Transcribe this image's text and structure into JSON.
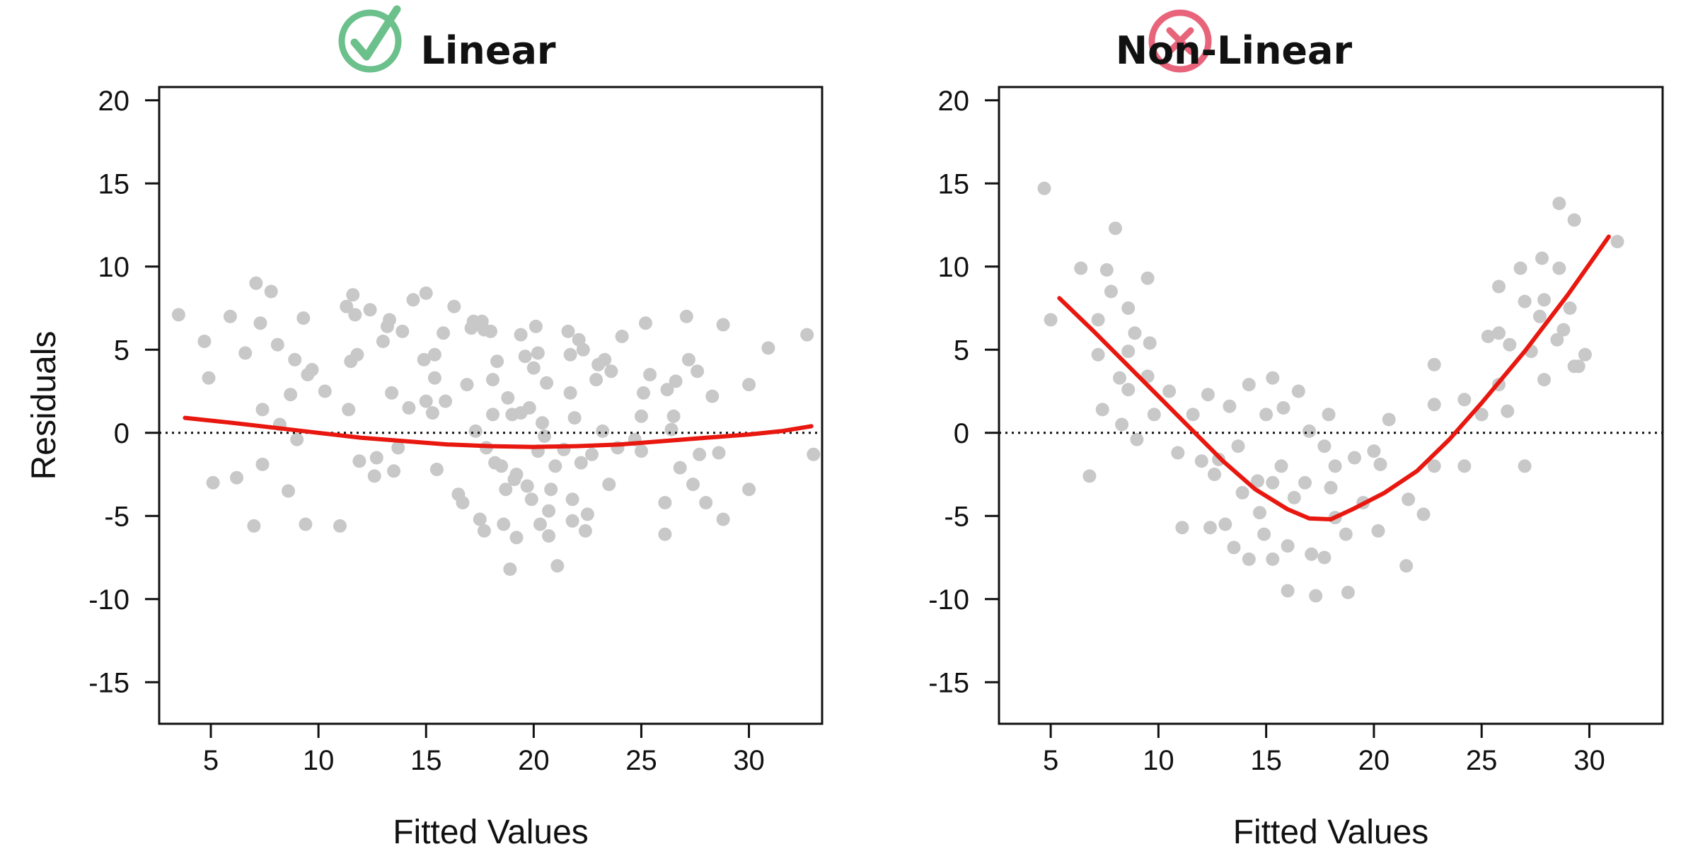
{
  "chart_data": [
    {
      "type": "scatter",
      "title": "Linear",
      "title_icon": "check-circle-icon",
      "title_icon_color": "#6cc08b",
      "xlabel": "Fitted Values",
      "ylabel": "Residuals",
      "xlim": [
        2.6,
        33.4
      ],
      "ylim": [
        -17.5,
        20.8
      ],
      "xticks": [
        5,
        10,
        15,
        20,
        25,
        30
      ],
      "yticks": [
        20,
        15,
        10,
        5,
        0,
        -5,
        -10,
        -15
      ],
      "point_color": "#c8c8c8",
      "line_color": "#e8170f",
      "reference_line": 0,
      "points": [
        [
          3.5,
          7.1
        ],
        [
          4.7,
          5.5
        ],
        [
          4.9,
          3.3
        ],
        [
          5.1,
          -3.0
        ],
        [
          5.9,
          7.0
        ],
        [
          6.2,
          -2.7
        ],
        [
          6.6,
          4.8
        ],
        [
          7.0,
          -5.6
        ],
        [
          7.1,
          9.0
        ],
        [
          7.3,
          6.6
        ],
        [
          7.4,
          1.4
        ],
        [
          7.4,
          -1.9
        ],
        [
          7.8,
          8.5
        ],
        [
          8.1,
          5.3
        ],
        [
          8.2,
          0.5
        ],
        [
          8.6,
          -3.5
        ],
        [
          8.7,
          2.3
        ],
        [
          8.9,
          4.4
        ],
        [
          9.0,
          -0.4
        ],
        [
          9.3,
          6.9
        ],
        [
          9.4,
          -5.5
        ],
        [
          9.5,
          3.5
        ],
        [
          9.7,
          3.8
        ],
        [
          10.3,
          2.5
        ],
        [
          11.0,
          -5.6
        ],
        [
          11.3,
          7.6
        ],
        [
          11.4,
          1.4
        ],
        [
          11.5,
          4.3
        ],
        [
          11.6,
          8.3
        ],
        [
          11.7,
          7.1
        ],
        [
          11.8,
          4.7
        ],
        [
          11.9,
          -1.7
        ],
        [
          12.4,
          7.4
        ],
        [
          12.6,
          -2.6
        ],
        [
          12.7,
          -1.5
        ],
        [
          13.0,
          5.5
        ],
        [
          13.2,
          6.4
        ],
        [
          13.3,
          6.8
        ],
        [
          13.4,
          2.4
        ],
        [
          13.5,
          -2.3
        ],
        [
          13.7,
          -0.9
        ],
        [
          13.9,
          6.1
        ],
        [
          14.2,
          1.5
        ],
        [
          14.4,
          8.0
        ],
        [
          14.9,
          4.4
        ],
        [
          15.0,
          8.4
        ],
        [
          15.0,
          1.9
        ],
        [
          15.3,
          1.2
        ],
        [
          15.4,
          3.3
        ],
        [
          15.4,
          4.7
        ],
        [
          15.5,
          -2.2
        ],
        [
          15.8,
          6.0
        ],
        [
          15.9,
          1.9
        ],
        [
          16.3,
          7.6
        ],
        [
          16.5,
          -3.7
        ],
        [
          16.7,
          -4.2
        ],
        [
          16.9,
          2.9
        ],
        [
          17.1,
          6.3
        ],
        [
          17.2,
          6.7
        ],
        [
          17.3,
          0.1
        ],
        [
          17.5,
          -5.2
        ],
        [
          17.6,
          6.7
        ],
        [
          17.7,
          6.2
        ],
        [
          17.7,
          -5.9
        ],
        [
          17.8,
          -0.9
        ],
        [
          18.0,
          6.1
        ],
        [
          18.1,
          1.1
        ],
        [
          18.1,
          3.2
        ],
        [
          18.2,
          -1.8
        ],
        [
          18.3,
          4.3
        ],
        [
          18.5,
          -2.0
        ],
        [
          18.6,
          -5.5
        ],
        [
          18.7,
          -3.4
        ],
        [
          18.8,
          2.1
        ],
        [
          18.9,
          -8.2
        ],
        [
          19.0,
          1.1
        ],
        [
          19.1,
          -2.8
        ],
        [
          19.2,
          -2.5
        ],
        [
          19.2,
          -6.3
        ],
        [
          19.4,
          1.2
        ],
        [
          19.4,
          5.9
        ],
        [
          19.6,
          4.6
        ],
        [
          19.7,
          -3.2
        ],
        [
          19.8,
          1.5
        ],
        [
          19.9,
          -4.0
        ],
        [
          20.0,
          3.9
        ],
        [
          20.1,
          6.4
        ],
        [
          20.2,
          4.8
        ],
        [
          20.2,
          -1.1
        ],
        [
          20.3,
          -5.5
        ],
        [
          20.4,
          0.6
        ],
        [
          20.5,
          -0.2
        ],
        [
          20.6,
          3.0
        ],
        [
          20.7,
          -6.2
        ],
        [
          20.7,
          -4.7
        ],
        [
          20.8,
          -3.4
        ],
        [
          21.0,
          -2.0
        ],
        [
          21.1,
          -8.0
        ],
        [
          21.4,
          -1.0
        ],
        [
          21.6,
          6.1
        ],
        [
          21.7,
          2.4
        ],
        [
          21.7,
          4.7
        ],
        [
          21.8,
          -4.0
        ],
        [
          21.8,
          -5.3
        ],
        [
          21.9,
          0.9
        ],
        [
          22.1,
          5.6
        ],
        [
          22.2,
          -1.8
        ],
        [
          22.3,
          5.0
        ],
        [
          22.4,
          -5.9
        ],
        [
          22.5,
          -4.9
        ],
        [
          22.7,
          -1.3
        ],
        [
          22.9,
          3.2
        ],
        [
          23.0,
          4.1
        ],
        [
          23.2,
          0.1
        ],
        [
          23.3,
          4.4
        ],
        [
          23.5,
          -3.1
        ],
        [
          23.6,
          3.7
        ],
        [
          23.9,
          -0.9
        ],
        [
          24.1,
          5.8
        ],
        [
          24.7,
          -0.4
        ],
        [
          25.0,
          -1.1
        ],
        [
          25.0,
          1.0
        ],
        [
          25.1,
          2.4
        ],
        [
          25.2,
          6.6
        ],
        [
          25.4,
          3.5
        ],
        [
          26.1,
          -6.1
        ],
        [
          26.1,
          -4.2
        ],
        [
          26.2,
          2.6
        ],
        [
          26.4,
          0.2
        ],
        [
          26.5,
          1.0
        ],
        [
          26.6,
          3.1
        ],
        [
          26.8,
          -2.1
        ],
        [
          27.1,
          7.0
        ],
        [
          27.2,
          4.4
        ],
        [
          27.4,
          -3.1
        ],
        [
          27.6,
          3.7
        ],
        [
          27.7,
          -1.3
        ],
        [
          28.0,
          -4.2
        ],
        [
          28.3,
          2.2
        ],
        [
          28.6,
          -1.2
        ],
        [
          28.8,
          6.5
        ],
        [
          28.8,
          -5.2
        ],
        [
          30.0,
          -3.4
        ],
        [
          30.0,
          2.9
        ],
        [
          30.9,
          5.1
        ],
        [
          32.7,
          5.9
        ],
        [
          33.0,
          -1.3
        ]
      ],
      "smooth": [
        [
          3.8,
          0.9
        ],
        [
          6,
          0.6
        ],
        [
          8,
          0.3
        ],
        [
          10,
          0.0
        ],
        [
          12,
          -0.3
        ],
        [
          14,
          -0.5
        ],
        [
          16,
          -0.7
        ],
        [
          18,
          -0.8
        ],
        [
          20,
          -0.85
        ],
        [
          22,
          -0.8
        ],
        [
          24,
          -0.7
        ],
        [
          26,
          -0.5
        ],
        [
          28,
          -0.3
        ],
        [
          30,
          -0.1
        ],
        [
          31.5,
          0.1
        ],
        [
          32.9,
          0.4
        ]
      ]
    },
    {
      "type": "scatter",
      "title": "Non-Linear",
      "title_icon": "x-circle-icon",
      "title_icon_color": "#e8647a",
      "xlabel": "Fitted Values",
      "ylabel": "",
      "xlim": [
        2.6,
        33.4
      ],
      "ylim": [
        -17.5,
        20.8
      ],
      "xticks": [
        5,
        10,
        15,
        20,
        25,
        30
      ],
      "yticks": [
        20,
        15,
        10,
        5,
        0,
        -5,
        -10,
        -15
      ],
      "point_color": "#c8c8c8",
      "line_color": "#e8170f",
      "reference_line": 0,
      "points": [
        [
          4.7,
          14.7
        ],
        [
          5.0,
          6.8
        ],
        [
          6.4,
          9.9
        ],
        [
          6.8,
          -2.6
        ],
        [
          7.2,
          6.8
        ],
        [
          7.2,
          4.7
        ],
        [
          7.4,
          1.4
        ],
        [
          7.6,
          9.8
        ],
        [
          7.8,
          8.5
        ],
        [
          8.0,
          12.3
        ],
        [
          8.2,
          3.3
        ],
        [
          8.3,
          0.5
        ],
        [
          8.6,
          7.5
        ],
        [
          8.6,
          2.6
        ],
        [
          8.6,
          4.9
        ],
        [
          8.9,
          6.0
        ],
        [
          9.0,
          -0.4
        ],
        [
          9.5,
          9.3
        ],
        [
          9.5,
          3.4
        ],
        [
          9.6,
          5.4
        ],
        [
          9.8,
          1.1
        ],
        [
          10.5,
          2.5
        ],
        [
          10.9,
          -1.2
        ],
        [
          11.1,
          -5.7
        ],
        [
          11.6,
          1.1
        ],
        [
          12.0,
          -1.7
        ],
        [
          12.3,
          2.3
        ],
        [
          12.4,
          -5.7
        ],
        [
          12.6,
          -2.5
        ],
        [
          12.8,
          -1.6
        ],
        [
          13.1,
          -5.5
        ],
        [
          13.3,
          1.6
        ],
        [
          13.5,
          -6.9
        ],
        [
          13.7,
          -0.8
        ],
        [
          13.9,
          -3.6
        ],
        [
          14.2,
          2.9
        ],
        [
          14.2,
          -7.6
        ],
        [
          14.6,
          -2.9
        ],
        [
          14.7,
          -4.8
        ],
        [
          14.9,
          -6.1
        ],
        [
          15.0,
          1.1
        ],
        [
          15.3,
          3.3
        ],
        [
          15.3,
          -3.0
        ],
        [
          15.3,
          -7.6
        ],
        [
          15.7,
          -2.0
        ],
        [
          15.8,
          1.5
        ],
        [
          16.0,
          -6.8
        ],
        [
          16.0,
          -9.5
        ],
        [
          16.3,
          -3.9
        ],
        [
          16.5,
          2.5
        ],
        [
          16.8,
          -3.0
        ],
        [
          17.0,
          0.1
        ],
        [
          17.1,
          -7.3
        ],
        [
          17.3,
          -9.8
        ],
        [
          17.7,
          -0.8
        ],
        [
          17.7,
          -7.5
        ],
        [
          17.9,
          1.1
        ],
        [
          18.0,
          -3.3
        ],
        [
          18.2,
          -5.1
        ],
        [
          18.2,
          -2.0
        ],
        [
          18.7,
          -6.1
        ],
        [
          18.8,
          -9.6
        ],
        [
          19.1,
          -1.5
        ],
        [
          19.5,
          -4.2
        ],
        [
          20.0,
          -1.1
        ],
        [
          20.2,
          -5.9
        ],
        [
          20.3,
          -1.9
        ],
        [
          20.7,
          0.8
        ],
        [
          21.5,
          -8.0
        ],
        [
          21.6,
          -4.0
        ],
        [
          22.3,
          -4.9
        ],
        [
          22.8,
          -2.0
        ],
        [
          22.8,
          1.7
        ],
        [
          22.8,
          4.1
        ],
        [
          24.2,
          -2.0
        ],
        [
          24.2,
          2.0
        ],
        [
          25.0,
          1.1
        ],
        [
          25.3,
          5.8
        ],
        [
          25.8,
          8.8
        ],
        [
          25.8,
          6.0
        ],
        [
          25.8,
          2.9
        ],
        [
          26.2,
          1.3
        ],
        [
          26.3,
          5.3
        ],
        [
          26.8,
          9.9
        ],
        [
          27.0,
          -2.0
        ],
        [
          27.0,
          7.9
        ],
        [
          27.3,
          4.9
        ],
        [
          27.7,
          7.0
        ],
        [
          27.8,
          10.5
        ],
        [
          27.9,
          3.2
        ],
        [
          27.9,
          8.0
        ],
        [
          28.5,
          5.6
        ],
        [
          28.6,
          13.8
        ],
        [
          28.6,
          9.9
        ],
        [
          28.8,
          6.2
        ],
        [
          29.1,
          7.5
        ],
        [
          29.3,
          12.8
        ],
        [
          29.3,
          4.0
        ],
        [
          29.5,
          4.0
        ],
        [
          29.8,
          4.7
        ],
        [
          31.3,
          11.5
        ]
      ],
      "smooth": [
        [
          5.4,
          8.1
        ],
        [
          7,
          6.1
        ],
        [
          9,
          3.5
        ],
        [
          11,
          0.9
        ],
        [
          13,
          -1.7
        ],
        [
          14.5,
          -3.4
        ],
        [
          16,
          -4.6
        ],
        [
          17,
          -5.15
        ],
        [
          18,
          -5.2
        ],
        [
          19,
          -4.6
        ],
        [
          20.5,
          -3.6
        ],
        [
          22,
          -2.3
        ],
        [
          23.5,
          -0.4
        ],
        [
          25,
          1.8
        ],
        [
          27,
          4.9
        ],
        [
          29,
          8.3
        ],
        [
          30.9,
          11.8
        ]
      ]
    }
  ]
}
